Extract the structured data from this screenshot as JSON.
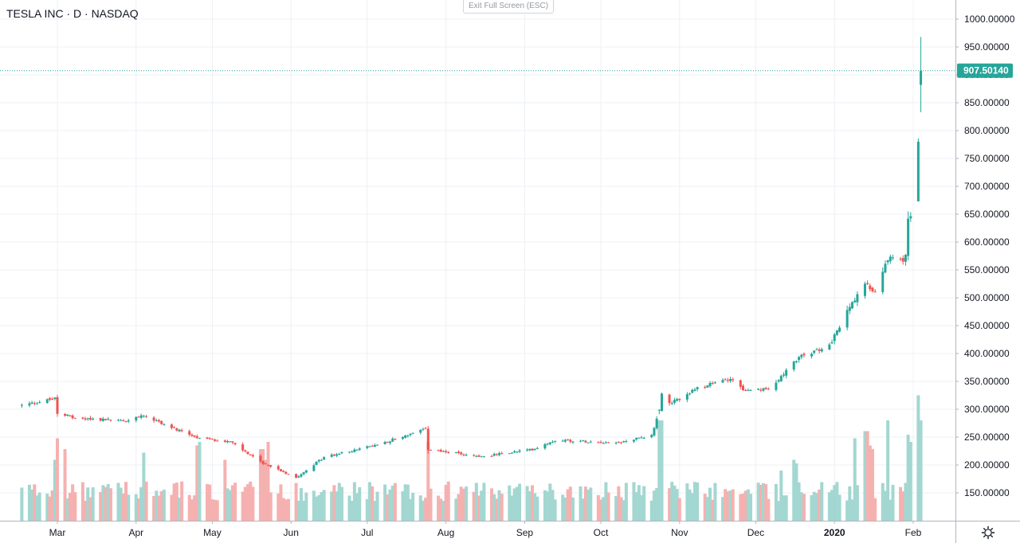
{
  "header": {
    "title": "TESLA INC · D · NASDAQ",
    "exit_fullscreen_label": "Exit Full Screen (ESC)"
  },
  "price_axis": {
    "labels": [
      "1000.00000",
      "950.00000",
      "900.00000",
      "850.00000",
      "800.00000",
      "750.00000",
      "700.00000",
      "650.00000",
      "600.00000",
      "550.00000",
      "500.00000",
      "450.00000",
      "400.00000",
      "350.00000",
      "300.00000",
      "250.00000",
      "200.00000",
      "150.00000"
    ],
    "last_price_label": "907.50140"
  },
  "time_axis": {
    "labels": [
      "Mar",
      "Apr",
      "May",
      "Jun",
      "Jul",
      "Aug",
      "Sep",
      "Oct",
      "Nov",
      "Dec",
      "2020",
      "Feb"
    ]
  },
  "colors": {
    "up": "#26a69a",
    "down": "#ef5350",
    "up_volume": "#a3d7d1",
    "down_volume": "#f5b1b0",
    "grid": "#edf0f4",
    "last_price": "#26a69a"
  },
  "icons": {
    "settings": "gear-icon"
  },
  "chart_data": {
    "type": "candlestick",
    "symbol": "TSLA",
    "interval": "D",
    "exchange": "NASDAQ",
    "ylim": [
      100,
      1040
    ],
    "last_price": 907.5014,
    "grid": true,
    "volume_overlay": true,
    "anchors": [
      [
        "2019-02-15",
        307
      ],
      [
        "2019-02-28",
        319
      ],
      [
        "2019-03-01",
        294
      ],
      [
        "2019-03-08",
        284
      ],
      [
        "2019-03-29",
        279
      ],
      [
        "2019-04-03",
        291
      ],
      [
        "2019-04-25",
        247
      ],
      [
        "2019-05-08",
        242
      ],
      [
        "2019-05-20",
        205
      ],
      [
        "2019-06-03",
        178
      ],
      [
        "2019-06-14",
        214
      ],
      [
        "2019-07-03",
        234
      ],
      [
        "2019-07-24",
        264
      ],
      [
        "2019-07-25",
        228
      ],
      [
        "2019-08-15",
        215
      ],
      [
        "2019-09-04",
        228
      ],
      [
        "2019-09-13",
        245
      ],
      [
        "2019-10-08",
        240
      ],
      [
        "2019-10-21",
        253
      ],
      [
        "2019-10-24",
        299
      ],
      [
        "2019-11-08",
        337
      ],
      [
        "2019-11-21",
        356
      ],
      [
        "2019-11-27",
        332
      ],
      [
        "2019-12-06",
        336
      ],
      [
        "2019-12-18",
        393
      ],
      [
        "2019-12-30",
        414
      ],
      [
        "2020-01-08",
        492
      ],
      [
        "2020-01-13",
        524
      ],
      [
        "2020-01-17",
        510
      ],
      [
        "2020-01-22",
        570
      ],
      [
        "2020-01-27",
        565
      ],
      [
        "2020-01-28",
        567
      ],
      [
        "2020-01-29",
        580
      ],
      [
        "2020-01-30",
        640
      ],
      [
        "2020-01-31",
        650
      ],
      [
        "2020-02-03",
        780
      ],
      [
        "2020-02-04",
        887
      ]
    ],
    "final_candle": {
      "date": "2020-02-04",
      "open": 882,
      "high": 968,
      "low": 833,
      "close": 907.5014
    },
    "volume_scale": "relative",
    "volume_spikes": {
      "2019-02-28": 1.7,
      "2019-03-01": 2.3,
      "2019-03-04": 2.0,
      "2019-04-04": 1.9,
      "2019-04-25": 2.1,
      "2019-04-26": 2.2,
      "2019-05-06": 1.7,
      "2019-05-20": 2.0,
      "2019-05-21": 2.0,
      "2019-05-22": 1.7,
      "2019-05-23": 2.2,
      "2019-07-25": 2.2,
      "2019-10-24": 2.8,
      "2019-10-25": 2.8,
      "2019-12-11": 1.4,
      "2019-12-16": 1.7,
      "2019-12-17": 1.6,
      "2020-01-09": 2.3,
      "2020-01-13": 2.5,
      "2020-01-14": 2.5,
      "2020-01-15": 2.1,
      "2020-01-16": 2.0,
      "2020-01-22": 2.8,
      "2020-01-30": 2.4,
      "2020-01-31": 2.2,
      "2020-02-03": 3.5,
      "2020-02-04": 2.8
    }
  }
}
